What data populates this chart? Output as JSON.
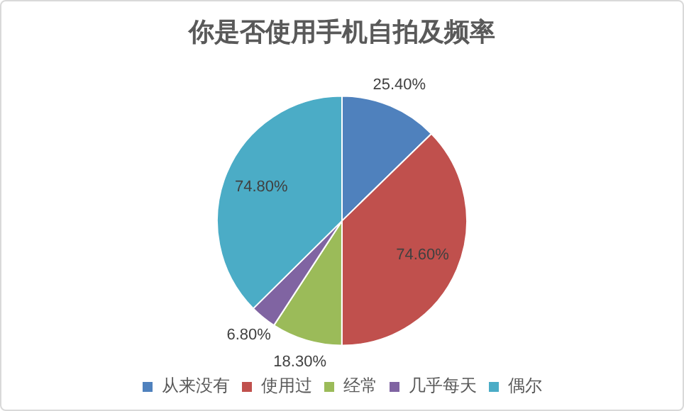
{
  "chart_data": {
    "type": "pie",
    "title": "你是否使用手机自拍及频率",
    "categories": [
      "从来没有",
      "使用过",
      "经常",
      "几乎每天",
      "偶尔"
    ],
    "values": [
      25.4,
      74.6,
      18.3,
      6.8,
      74.8
    ],
    "colors": [
      "#4f81bd",
      "#c0504d",
      "#9bbb59",
      "#8064a2",
      "#4bacc6"
    ],
    "value_labels": [
      "25.40%",
      "74.60%",
      "18.30%",
      "6.80%",
      "74.80%"
    ],
    "legend": "bottom"
  }
}
